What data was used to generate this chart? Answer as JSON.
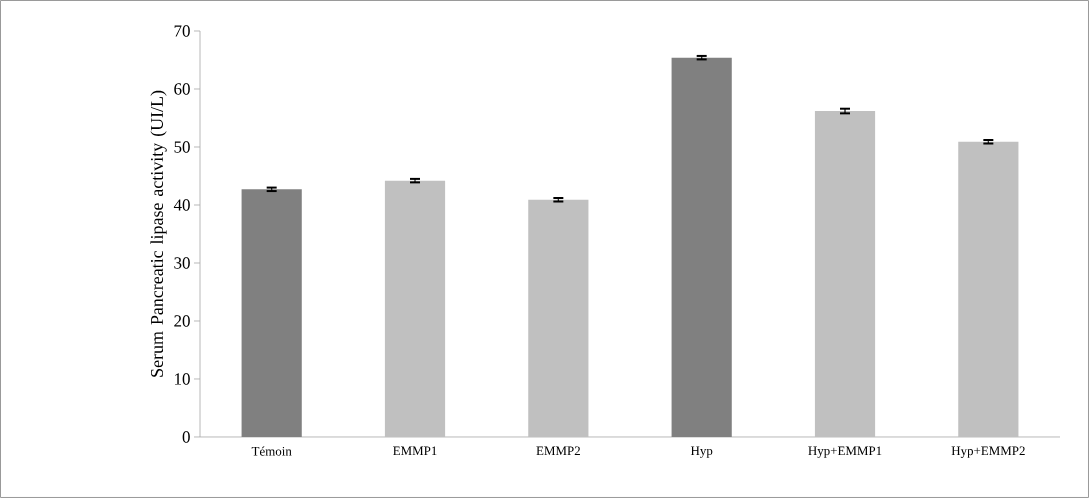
{
  "chart_data": {
    "type": "bar",
    "ylabel": "Serum Pancreatic lipase activity (UI/L)",
    "categories": [
      "Témoin",
      "EMMP1",
      "EMMP2",
      "Hyp",
      "Hyp+EMMP1",
      "Hyp+EMMP2"
    ],
    "values": [
      42.7,
      44.2,
      40.9,
      65.4,
      56.2,
      50.9
    ],
    "errors": [
      0.3,
      0.3,
      0.3,
      0.3,
      0.4,
      0.3
    ],
    "colors": [
      "#808080",
      "#c0c0c0",
      "#c0c0c0",
      "#808080",
      "#c0c0c0",
      "#c0c0c0"
    ],
    "ylim": [
      0,
      70
    ],
    "yticks": [
      0,
      10,
      20,
      30,
      40,
      50,
      60,
      70
    ],
    "grid": false
  }
}
